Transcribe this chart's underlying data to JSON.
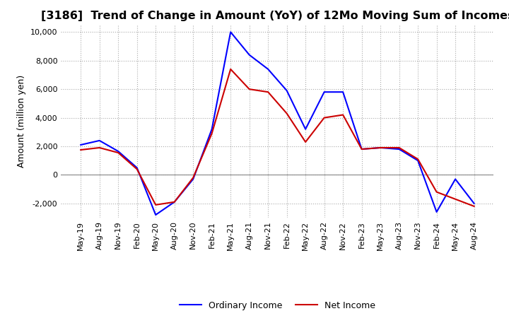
{
  "title": "[3186]  Trend of Change in Amount (YoY) of 12Mo Moving Sum of Incomes",
  "ylabel": "Amount (million yen)",
  "ylim": [
    -3000,
    10500
  ],
  "yticks": [
    -2000,
    0,
    2000,
    4000,
    6000,
    8000,
    10000
  ],
  "x_labels": [
    "May-19",
    "Aug-19",
    "Nov-19",
    "Feb-20",
    "May-20",
    "Aug-20",
    "Nov-20",
    "Feb-21",
    "May-21",
    "Aug-21",
    "Nov-21",
    "Feb-22",
    "May-22",
    "Aug-22",
    "Nov-22",
    "Feb-23",
    "May-23",
    "Aug-23",
    "Nov-23",
    "Feb-24",
    "May-24",
    "Aug-24"
  ],
  "ordinary_income": [
    2100,
    2400,
    1650,
    500,
    -2800,
    -1900,
    -300,
    3200,
    10000,
    8400,
    7400,
    5900,
    3200,
    5800,
    5800,
    1800,
    1900,
    1800,
    1000,
    -2600,
    -300,
    -2000
  ],
  "net_income": [
    1750,
    1900,
    1550,
    400,
    -2100,
    -1900,
    -200,
    2900,
    7400,
    6000,
    5800,
    4300,
    2300,
    4000,
    4200,
    1800,
    1900,
    1900,
    1100,
    -1200,
    -1700,
    -2200
  ],
  "ordinary_income_color": "#0000ff",
  "net_income_color": "#cc0000",
  "line_width": 1.5,
  "background_color": "#ffffff",
  "grid_color": "#aaaaaa",
  "title_fontsize": 11.5,
  "label_fontsize": 9,
  "tick_fontsize": 8
}
